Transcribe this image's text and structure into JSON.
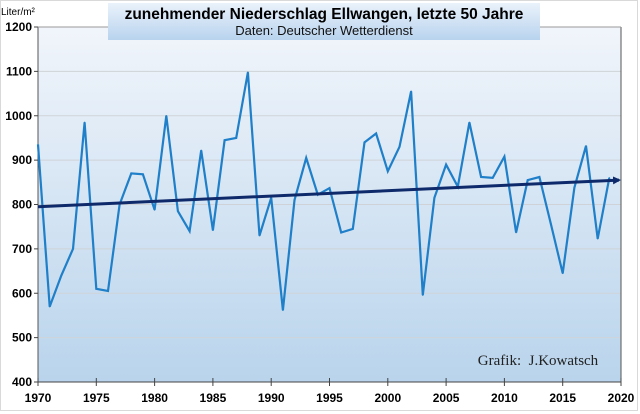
{
  "chart_data": {
    "type": "line",
    "title": "zunehmender Niederschlag Ellwangen, letzte 50 Jahre",
    "subtitle": "Daten: Deutscher Wetterdienst",
    "ylabel": "Liter/m²",
    "xlabel": "",
    "credit": "Grafik:  J.Kowatsch",
    "xlim": [
      1970,
      2020
    ],
    "ylim": [
      400,
      1200
    ],
    "x_ticks": [
      "1970",
      "1975",
      "1980",
      "1985",
      "1990",
      "1995",
      "2000",
      "2005",
      "2010",
      "2015",
      "2020"
    ],
    "y_ticks": [
      "400",
      "500",
      "600",
      "700",
      "800",
      "900",
      "1000",
      "1100",
      "1200"
    ],
    "grid": true,
    "legend": "none",
    "series": [
      {
        "name": "Niederschlag",
        "color": "#1f7fc8",
        "x": [
          1970,
          1971,
          1972,
          1973,
          1974,
          1975,
          1976,
          1977,
          1978,
          1979,
          1980,
          1981,
          1982,
          1983,
          1984,
          1985,
          1986,
          1987,
          1988,
          1989,
          1990,
          1991,
          1992,
          1993,
          1994,
          1995,
          1996,
          1997,
          1998,
          1999,
          2000,
          2001,
          2002,
          2003,
          2004,
          2005,
          2006,
          2007,
          2008,
          2009,
          2010,
          2011,
          2012,
          2013,
          2014,
          2015,
          2016,
          2017,
          2018,
          2019
        ],
        "values": [
          935,
          570,
          640,
          700,
          985,
          610,
          605,
          800,
          870,
          868,
          788,
          1000,
          785,
          740,
          922,
          742,
          945,
          950,
          1098,
          730,
          815,
          562,
          810,
          905,
          822,
          837,
          737,
          745,
          940,
          960,
          875,
          930,
          1055,
          596,
          815,
          890,
          840,
          985,
          862,
          860,
          908,
          737,
          855,
          862,
          755,
          645,
          838,
          932,
          723,
          860
        ]
      },
      {
        "name": "Trend",
        "color": "#0f2a6b",
        "x": [
          1970,
          2020
        ],
        "values": [
          795,
          855
        ]
      }
    ]
  }
}
